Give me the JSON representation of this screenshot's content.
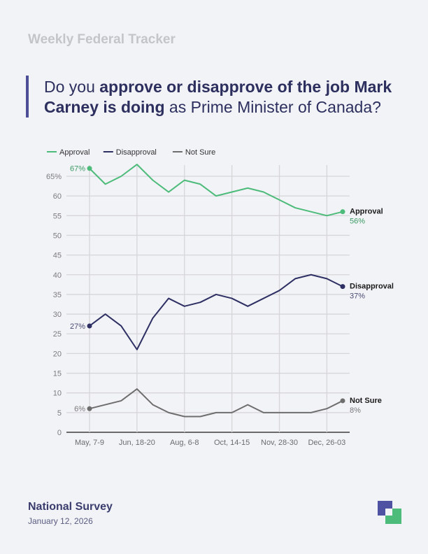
{
  "header": {
    "brand": "Weekly Federal Tracker",
    "question_pre": "Do you ",
    "question_bold1": "approve or disapprove of the job Mark Carney is doing",
    "question_post": " as Prime Minister of Canada?"
  },
  "footer": {
    "title": "National Survey",
    "date": "January 12, 2026"
  },
  "chart_data": {
    "type": "line",
    "title": "",
    "xlabel": "",
    "ylabel": "",
    "ylim": [
      0,
      65
    ],
    "yticks": [
      "0",
      "5",
      "10",
      "15",
      "20",
      "25",
      "30",
      "35",
      "40",
      "45",
      "50",
      "55",
      "60",
      "65%"
    ],
    "xtick_labels": [
      "May, 7-9",
      "Jun, 18-20",
      "Aug, 6-8",
      "Oct, 14-15",
      "Nov, 28-30",
      "Dec, 26-03"
    ],
    "xtick_every": 3,
    "grid": true,
    "legend_placement": "top-left",
    "series": [
      {
        "name": "Approval",
        "color": "#4dbb7a",
        "label_color": "#3a9a62",
        "start_label": "67%",
        "end_label": "56%",
        "values": [
          67,
          63,
          65,
          68,
          64,
          61,
          64,
          63,
          60,
          61,
          62,
          61,
          59,
          57,
          56,
          55,
          56
        ]
      },
      {
        "name": "Disapproval",
        "color": "#2e2f63",
        "label_color": "#4a4c72",
        "start_label": "27%",
        "end_label": "37%",
        "values": [
          27,
          30,
          27,
          21,
          29,
          34,
          32,
          33,
          35,
          34,
          32,
          34,
          36,
          39,
          40,
          39,
          37
        ]
      },
      {
        "name": "Not Sure",
        "color": "#6e6e6e",
        "label_color": "#7a7a7a",
        "start_label": "6%",
        "end_label": "8%",
        "values": [
          6,
          7,
          8,
          11,
          7,
          5,
          4,
          4,
          5,
          5,
          7,
          5,
          5,
          5,
          5,
          6,
          8
        ]
      }
    ]
  }
}
